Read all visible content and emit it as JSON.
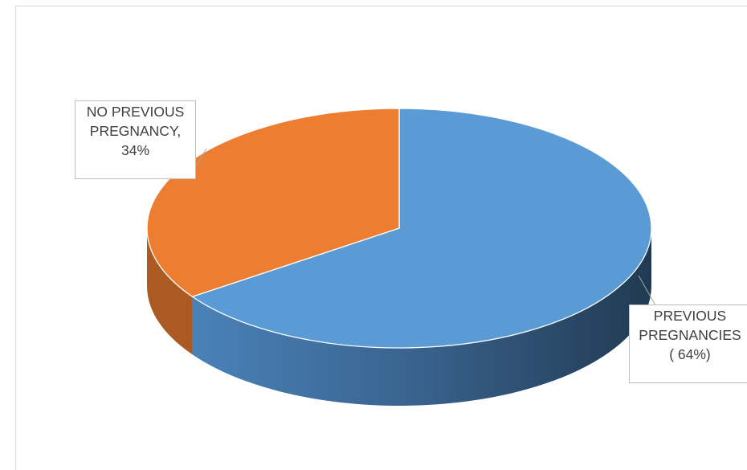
{
  "chart_data": {
    "type": "pie",
    "style": "3d",
    "slices": [
      {
        "label_lines": [
          "PREVIOUS",
          "PREGNANCIES",
          "( 64%)"
        ],
        "value": 64,
        "color": "#5b9bd5"
      },
      {
        "label_lines": [
          "NO PREVIOUS",
          "PREGNANCY,",
          "34%"
        ],
        "value": 34,
        "color": "#ed7d31"
      }
    ]
  }
}
